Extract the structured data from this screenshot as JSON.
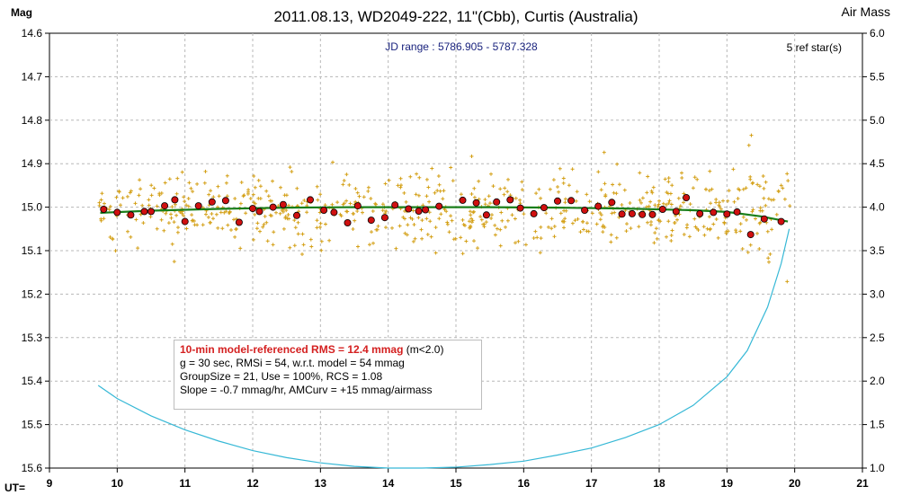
{
  "chart_data": {
    "type": "scatter",
    "title": "2011.08.13, WD2049-222, 11\"(Cbb), Curtis (Australia)",
    "subtitle": "JD range : 5786.905 - 5787.328",
    "ylabel": "Mag",
    "y2label": "Air Mass",
    "xlabel": "UT=",
    "annotation_top_right": "5 ref star(s)",
    "xlim": [
      9,
      21
    ],
    "ylim": [
      15.6,
      14.6
    ],
    "y2lim": [
      1.0,
      6.0
    ],
    "x_ticks": [
      "9",
      "10",
      "11",
      "12",
      "13",
      "14",
      "15",
      "16",
      "17",
      "18",
      "19",
      "20",
      "21"
    ],
    "y_ticks": [
      "14.6",
      "14.7",
      "14.8",
      "14.9",
      "15.0",
      "15.1",
      "15.2",
      "15.3",
      "15.4",
      "15.5",
      "15.6"
    ],
    "y2_ticks": [
      "6.0",
      "5.5",
      "5.0",
      "4.5",
      "4.0",
      "3.5",
      "3.0",
      "2.5",
      "2.0",
      "1.5",
      "1.0"
    ],
    "grid": true,
    "series": [
      {
        "kind": "raw",
        "color": "#d4a017",
        "x_range": [
          9.72,
          19.93
        ],
        "center_mag": 15.005,
        "scatter_sd": 0.055,
        "count": 700
      },
      {
        "kind": "binned",
        "color": "#d01010",
        "x": [
          9.8,
          10.0,
          10.2,
          10.4,
          10.5,
          10.7,
          10.85,
          11.0,
          11.2,
          11.4,
          11.6,
          11.8,
          12.0,
          12.1,
          12.3,
          12.45,
          12.65,
          12.85,
          13.05,
          13.2,
          13.4,
          13.55,
          13.75,
          13.95,
          14.1,
          14.3,
          14.45,
          14.55,
          14.75,
          15.1,
          15.3,
          15.45,
          15.6,
          15.8,
          15.95,
          16.15,
          16.3,
          16.5,
          16.7,
          16.9,
          17.1,
          17.3,
          17.45,
          17.6,
          17.75,
          17.9,
          18.05,
          18.25,
          18.4,
          18.6,
          18.8,
          19.0,
          19.15,
          19.35,
          19.55,
          19.8
        ],
        "y": [
          15.005,
          15.012,
          15.018,
          15.01,
          15.01,
          14.997,
          14.983,
          15.033,
          14.997,
          14.988,
          14.985,
          15.035,
          15.003,
          15.01,
          15.0,
          14.994,
          15.019,
          14.983,
          15.007,
          15.012,
          15.036,
          14.997,
          15.03,
          15.024,
          14.995,
          15.004,
          15.009,
          15.006,
          14.998,
          14.984,
          14.99,
          15.018,
          14.988,
          14.983,
          15.002,
          15.015,
          15.001,
          14.986,
          14.985,
          15.007,
          14.998,
          14.989,
          15.016,
          15.015,
          15.017,
          15.017,
          15.005,
          15.01,
          14.978,
          15.015,
          15.012,
          15.016,
          15.011,
          15.063,
          15.027,
          15.033
        ]
      },
      {
        "kind": "model",
        "color": "#1a7f1a",
        "x": [
          9.75,
          10.5,
          11.5,
          12.5,
          13.5,
          14.5,
          15.5,
          16.5,
          17.5,
          18.5,
          19.0,
          19.5,
          19.9
        ],
        "y": [
          15.013,
          15.008,
          15.004,
          15.001,
          15.0,
          15.0,
          15.0,
          15.001,
          15.003,
          15.007,
          15.011,
          15.021,
          15.033
        ]
      },
      {
        "kind": "airmass",
        "color": "#36b8d6",
        "x": [
          9.72,
          10.0,
          10.5,
          11.0,
          11.5,
          12.0,
          12.5,
          13.0,
          13.5,
          14.0,
          14.5,
          15.0,
          15.5,
          16.0,
          16.5,
          17.0,
          17.5,
          18.0,
          18.5,
          19.0,
          19.3,
          19.6,
          19.8,
          19.92
        ],
        "y": [
          1.95,
          1.8,
          1.6,
          1.44,
          1.31,
          1.2,
          1.12,
          1.06,
          1.02,
          1.0,
          1.0,
          1.01,
          1.04,
          1.08,
          1.15,
          1.23,
          1.35,
          1.5,
          1.72,
          2.05,
          2.35,
          2.85,
          3.35,
          3.75
        ]
      }
    ],
    "stats_box": {
      "line1_bold": "10-min model-referenced RMS = 12.4 mmag",
      "line1_rest": " (m<2.0)",
      "line2": "g = 30 sec, RMSi = 54, w.r.t. model = 54 mmag",
      "line3": "GroupSize = 21, Use = 100%, RCS = 1.08",
      "line4": "Slope = -0.7 mmag/hr, AMCurv = +15 mmag/airmass"
    }
  }
}
